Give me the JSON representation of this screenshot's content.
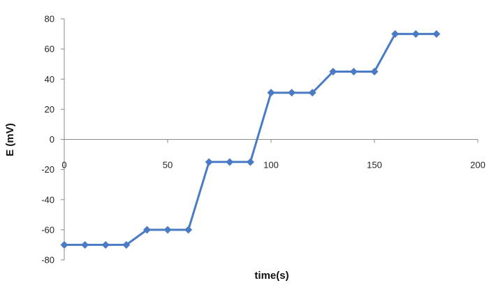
{
  "chart_data": {
    "type": "line",
    "title": "",
    "xlabel": "time(s)",
    "ylabel": "E (mV)",
    "xlim": [
      0,
      200
    ],
    "ylim": [
      -80,
      80
    ],
    "x_ticks": [
      "0",
      "50",
      "100",
      "150",
      "200"
    ],
    "y_ticks": [
      "-80",
      "-60",
      "-40",
      "-20",
      "0",
      "20",
      "40",
      "60",
      "80"
    ],
    "grid": false,
    "legend": "none",
    "series": [
      {
        "color": "#4a7bc4",
        "marker": "diamond",
        "x": [
          0,
          10,
          20,
          30,
          40,
          50,
          60,
          70,
          80,
          90,
          100,
          110,
          120,
          130,
          140,
          150,
          160,
          170,
          180
        ],
        "y": [
          -70,
          -70,
          -70,
          -70,
          -60,
          -60,
          -60,
          -15,
          -15,
          -15,
          31,
          31,
          31,
          45,
          45,
          45,
          70,
          70,
          70
        ]
      }
    ]
  }
}
